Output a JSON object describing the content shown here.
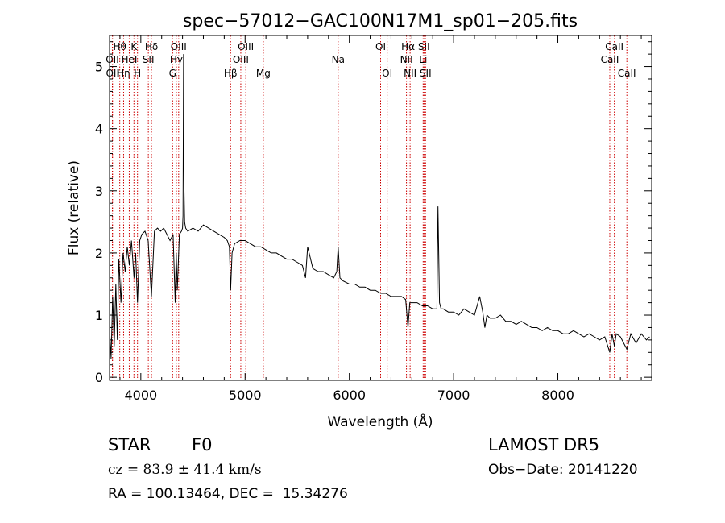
{
  "chart_data": {
    "type": "line",
    "title": "spec−57012−GAC100N17M1_sp01−205.fits",
    "xlabel": "Wavelength (Å)",
    "ylabel": "Flux (relative)",
    "xlim": [
      3700,
      8900
    ],
    "ylim": [
      -0.05,
      5.5
    ],
    "x_ticks": [
      4000,
      5000,
      6000,
      7000,
      8000
    ],
    "y_ticks": [
      0,
      1,
      2,
      3,
      4,
      5
    ],
    "grid": false,
    "line_color": "#000000",
    "marker_line_color": "#cc0000",
    "series": [
      {
        "x": [
          3700,
          3715,
          3730,
          3745,
          3760,
          3775,
          3790,
          3810,
          3830,
          3850,
          3870,
          3890,
          3910,
          3935,
          3950,
          3968,
          3990,
          4010,
          4040,
          4070,
          4102,
          4130,
          4160,
          4190,
          4220,
          4250,
          4280,
          4310,
          4330,
          4340,
          4350,
          4370,
          4390,
          4400,
          4405,
          4410,
          4415,
          4420,
          4430,
          4450,
          4500,
          4550,
          4600,
          4650,
          4700,
          4750,
          4800,
          4830,
          4850,
          4861,
          4875,
          4900,
          4950,
          5000,
          5050,
          5100,
          5150,
          5200,
          5250,
          5300,
          5350,
          5400,
          5450,
          5500,
          5550,
          5580,
          5600,
          5650,
          5700,
          5750,
          5800,
          5850,
          5880,
          5893,
          5910,
          5940,
          6000,
          6050,
          6100,
          6150,
          6200,
          6250,
          6300,
          6350,
          6400,
          6450,
          6500,
          6540,
          6563,
          6580,
          6600,
          6650,
          6700,
          6750,
          6800,
          6840,
          6850,
          6865,
          6880,
          6900,
          6950,
          7000,
          7050,
          7100,
          7150,
          7200,
          7250,
          7280,
          7300,
          7320,
          7350,
          7400,
          7450,
          7500,
          7550,
          7600,
          7650,
          7700,
          7750,
          7800,
          7850,
          7900,
          7950,
          8000,
          8050,
          8100,
          8150,
          8200,
          8250,
          8300,
          8350,
          8400,
          8450,
          8498,
          8520,
          8542,
          8560,
          8600,
          8662,
          8700,
          8750,
          8800,
          8850,
          8880
        ],
        "y": [
          0.8,
          0.3,
          1.3,
          0.5,
          1.5,
          0.6,
          1.9,
          1.2,
          2.0,
          1.7,
          2.1,
          1.8,
          2.2,
          1.6,
          2.0,
          1.2,
          2.2,
          2.3,
          2.35,
          2.2,
          1.3,
          2.35,
          2.4,
          2.35,
          2.4,
          2.3,
          2.2,
          2.3,
          1.2,
          2.0,
          1.4,
          2.3,
          2.35,
          2.4,
          2.6,
          5.2,
          3.0,
          2.5,
          2.4,
          2.35,
          2.4,
          2.35,
          2.45,
          2.4,
          2.35,
          2.3,
          2.25,
          2.2,
          2.1,
          1.4,
          2.0,
          2.15,
          2.2,
          2.2,
          2.15,
          2.1,
          2.1,
          2.05,
          2.0,
          2.0,
          1.95,
          1.9,
          1.9,
          1.85,
          1.8,
          1.6,
          2.1,
          1.75,
          1.7,
          1.7,
          1.65,
          1.6,
          1.7,
          2.1,
          1.6,
          1.55,
          1.5,
          1.5,
          1.45,
          1.45,
          1.4,
          1.4,
          1.35,
          1.35,
          1.3,
          1.3,
          1.3,
          1.25,
          0.8,
          1.2,
          1.2,
          1.2,
          1.15,
          1.15,
          1.1,
          1.1,
          2.75,
          1.2,
          1.1,
          1.1,
          1.05,
          1.05,
          1.0,
          1.1,
          1.05,
          1.0,
          1.3,
          1.05,
          0.8,
          1.0,
          0.95,
          0.95,
          1.0,
          0.9,
          0.9,
          0.85,
          0.9,
          0.85,
          0.8,
          0.8,
          0.75,
          0.8,
          0.75,
          0.75,
          0.7,
          0.7,
          0.75,
          0.7,
          0.65,
          0.7,
          0.65,
          0.6,
          0.65,
          0.4,
          0.7,
          0.5,
          0.7,
          0.65,
          0.45,
          0.7,
          0.55,
          0.7,
          0.6,
          0.65
        ]
      }
    ],
    "line_markers": [
      {
        "label": "Hθ",
        "x": 3798,
        "row": 0
      },
      {
        "label": "OII",
        "x": 3727,
        "row": 1
      },
      {
        "label": "OII",
        "x": 3729,
        "row": 2
      },
      {
        "label": "Hη",
        "x": 3835,
        "row": 2
      },
      {
        "label": "HeI",
        "x": 3889,
        "row": 1
      },
      {
        "label": "K",
        "x": 3934,
        "row": 0
      },
      {
        "label": "H",
        "x": 3968,
        "row": 2
      },
      {
        "label": "SII",
        "x": 4072,
        "row": 1
      },
      {
        "label": "Hδ",
        "x": 4102,
        "row": 0
      },
      {
        "label": "OIII",
        "x": 4363,
        "row": 0
      },
      {
        "label": "Hγ",
        "x": 4341,
        "row": 1
      },
      {
        "label": "G",
        "x": 4305,
        "row": 2
      },
      {
        "label": "Hβ",
        "x": 4861,
        "row": 2
      },
      {
        "label": "OIII",
        "x": 5007,
        "row": 0
      },
      {
        "label": "OIII",
        "x": 4959,
        "row": 1
      },
      {
        "label": "Mg",
        "x": 5175,
        "row": 2
      },
      {
        "label": "Na",
        "x": 5893,
        "row": 1
      },
      {
        "label": "OI",
        "x": 6300,
        "row": 0
      },
      {
        "label": "OI",
        "x": 6363,
        "row": 2
      },
      {
        "label": "Hα",
        "x": 6563,
        "row": 0
      },
      {
        "label": "NII",
        "x": 6548,
        "row": 1
      },
      {
        "label": "NII",
        "x": 6583,
        "row": 2
      },
      {
        "label": "SII",
        "x": 6716,
        "row": 0
      },
      {
        "label": "Li",
        "x": 6708,
        "row": 1
      },
      {
        "label": "SII",
        "x": 6731,
        "row": 2
      },
      {
        "label": "CaII",
        "x": 8542,
        "row": 0
      },
      {
        "label": "CaII",
        "x": 8498,
        "row": 1
      },
      {
        "label": "CaII",
        "x": 8662,
        "row": 2
      }
    ]
  },
  "info": {
    "class": "STAR",
    "subclass": "F0",
    "survey": "LAMOST DR5",
    "cz": "cz = 83.9 ± 41.4 km/s",
    "obs_date": "Obs−Date: 20141220",
    "coords": "RA = 100.13464, DEC =  15.34276"
  }
}
